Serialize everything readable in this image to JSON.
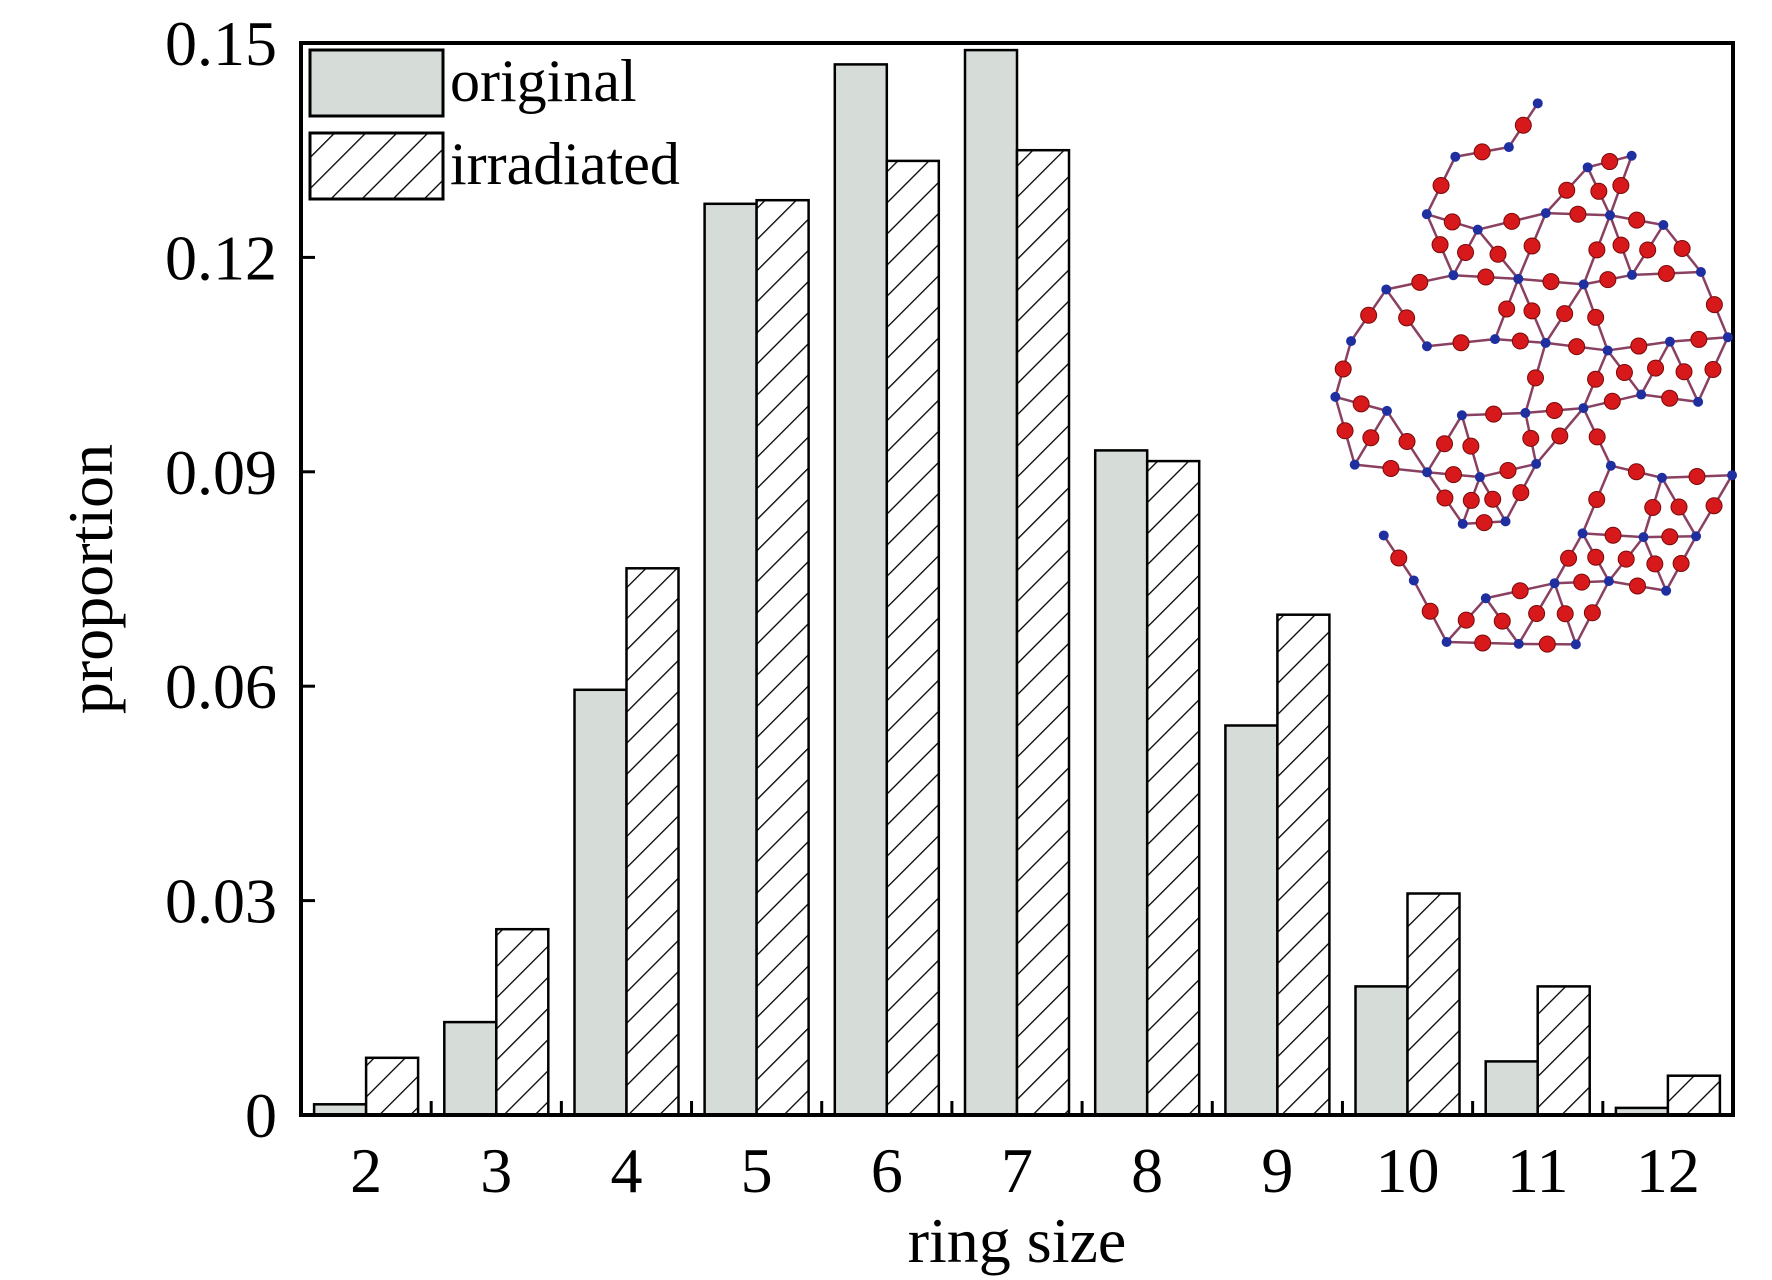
{
  "chart_data": {
    "type": "bar",
    "xlabel": "ring size",
    "ylabel": "proportion",
    "categories": [
      "2",
      "3",
      "4",
      "5",
      "6",
      "7",
      "8",
      "9",
      "10",
      "11",
      "12"
    ],
    "ylim": [
      0,
      0.15
    ],
    "yticks": [
      "0",
      "0.03",
      "0.06",
      "0.09",
      "0.12",
      "0.15"
    ],
    "ytick_values": [
      0,
      0.03,
      0.06,
      0.09,
      0.12,
      0.15
    ],
    "legend_position": "top-left",
    "grid": false,
    "series": [
      {
        "name": "original",
        "fill": "solid",
        "color": "#d6dcd8",
        "values": [
          0.0015,
          0.013,
          0.0595,
          0.1275,
          0.147,
          0.149,
          0.093,
          0.0545,
          0.018,
          0.0075,
          0.001
        ]
      },
      {
        "name": "irradiated",
        "fill": "diagonal-hatch",
        "color": "#ffffff",
        "values": [
          0.008,
          0.026,
          0.0765,
          0.128,
          0.1335,
          0.135,
          0.0915,
          0.07,
          0.031,
          0.018,
          0.0055
        ]
      }
    ],
    "inset": {
      "description": "molecular network",
      "atom_colors": [
        "#d7191c",
        "#1f2fa0"
      ]
    }
  }
}
